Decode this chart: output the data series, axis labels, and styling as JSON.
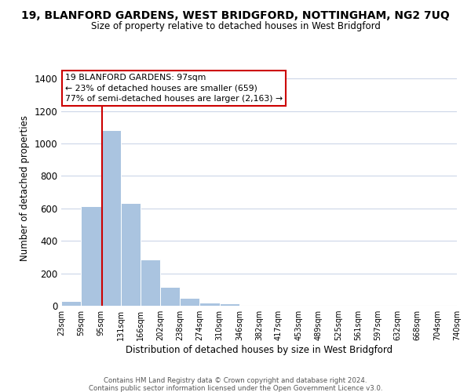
{
  "title": "19, BLANFORD GARDENS, WEST BRIDGFORD, NOTTINGHAM, NG2 7UQ",
  "subtitle": "Size of property relative to detached houses in West Bridgford",
  "xlabel": "Distribution of detached houses by size in West Bridgford",
  "ylabel": "Number of detached properties",
  "bin_edges": [
    23,
    59,
    95,
    131,
    166,
    202,
    238,
    274,
    310,
    346,
    382,
    417,
    453,
    489,
    525,
    561,
    597,
    632,
    668,
    704,
    740
  ],
  "bin_labels": [
    "23sqm",
    "59sqm",
    "95sqm",
    "131sqm",
    "166sqm",
    "202sqm",
    "238sqm",
    "274sqm",
    "310sqm",
    "346sqm",
    "382sqm",
    "417sqm",
    "453sqm",
    "489sqm",
    "525sqm",
    "561sqm",
    "597sqm",
    "632sqm",
    "668sqm",
    "704sqm",
    "740sqm"
  ],
  "bar_heights": [
    30,
    615,
    1085,
    635,
    285,
    115,
    47,
    20,
    15,
    0,
    0,
    0,
    0,
    0,
    0,
    0,
    0,
    0,
    0,
    0
  ],
  "bar_color": "#aac4e0",
  "bar_edge_color": "#ffffff",
  "property_line_x": 97,
  "property_line_color": "#cc0000",
  "annotation_line1": "19 BLANFORD GARDENS: 97sqm",
  "annotation_line2": "← 23% of detached houses are smaller (659)",
  "annotation_line3": "77% of semi-detached houses are larger (2,163) →",
  "ylim": [
    0,
    1450
  ],
  "yticks": [
    0,
    200,
    400,
    600,
    800,
    1000,
    1200,
    1400
  ],
  "background_color": "#ffffff",
  "grid_color": "#ccd6e8",
  "footer_line1": "Contains HM Land Registry data © Crown copyright and database right 2024.",
  "footer_line2": "Contains public sector information licensed under the Open Government Licence v3.0."
}
